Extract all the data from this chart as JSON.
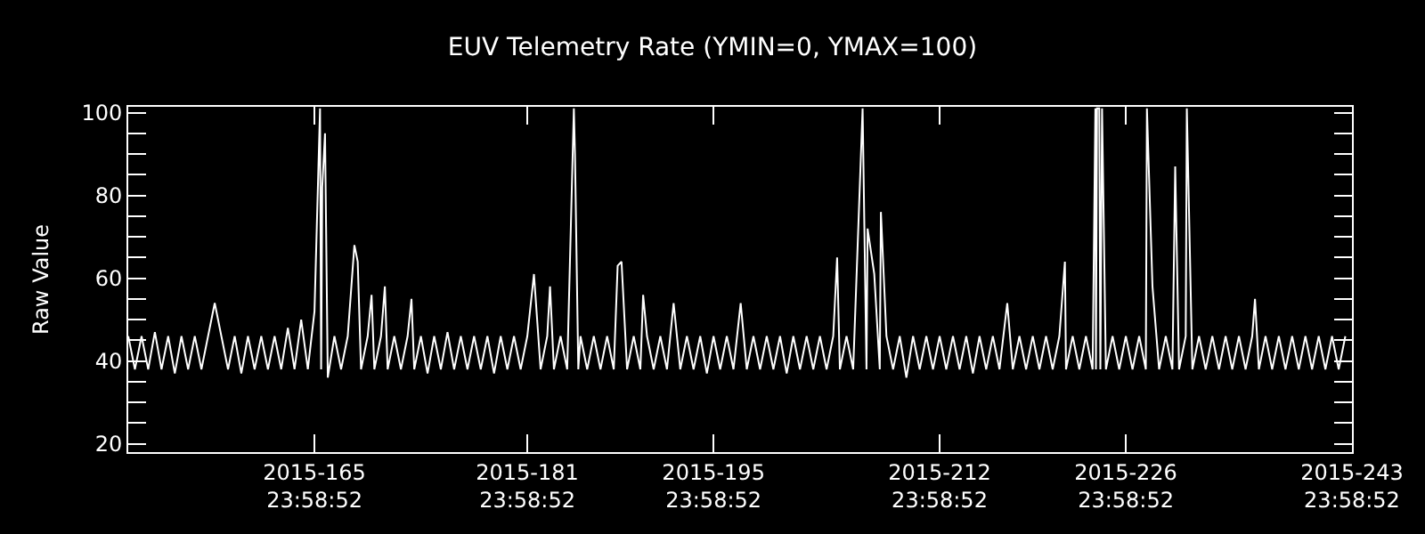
{
  "chart_data": {
    "type": "line",
    "title": "EUV Telemetry Rate (YMIN=0, YMAX=100)",
    "ylabel": "Raw Value",
    "xlim": [
      "2015-05-31T23:58",
      "2015-08-31T23:58"
    ],
    "xticks": [
      {
        "value": "2015-06-14T23:58",
        "label": "2015-165\n23:58:52"
      },
      {
        "value": "2015-06-30T23:58",
        "label": "2015-181\n23:58:52"
      },
      {
        "value": "2015-07-14T23:58",
        "label": "2015-195\n23:58:52"
      },
      {
        "value": "2015-07-31T23:58",
        "label": "2015-212\n23:58:52"
      },
      {
        "value": "2015-08-14T23:58",
        "label": "2015-226\n23:58:52"
      },
      {
        "value": "2015-08-31T23:58",
        "label": "2015-243\n23:58:52"
      }
    ],
    "ylim": [
      18,
      101.4
    ],
    "yticks": [
      20,
      {
        "value": 25,
        "label": null
      },
      {
        "value": 30,
        "label": null
      },
      {
        "value": 35,
        "label": null
      },
      40,
      {
        "value": 45,
        "label": null
      },
      {
        "value": 50,
        "label": null
      },
      {
        "value": 55,
        "label": null
      },
      60,
      {
        "value": 65,
        "label": null
      },
      {
        "value": 70,
        "label": null
      },
      {
        "value": 75,
        "label": null
      },
      80,
      {
        "value": 85,
        "label": null
      },
      {
        "value": 90,
        "label": null
      },
      {
        "value": 95,
        "label": null
      },
      100
    ],
    "grid": false,
    "marker": "none",
    "line_style": "solid",
    "series": [
      {
        "color": "#ffffff",
        "x": [
          "2015-06-01T00:00",
          "2015-06-01T12:00",
          "2015-06-02T00:00",
          "2015-06-02T12:00",
          "2015-06-03T00:00",
          "2015-06-03T12:00",
          "2015-06-04T00:00",
          "2015-06-04T12:00",
          "2015-06-05T00:00",
          "2015-06-05T12:00",
          "2015-06-06T00:00",
          "2015-06-06T12:00",
          "2015-06-07T00:00",
          "2015-06-07T12:00",
          "2015-06-08T00:00",
          "2015-06-08T12:00",
          "2015-06-09T00:00",
          "2015-06-09T12:00",
          "2015-06-10T00:00",
          "2015-06-10T12:00",
          "2015-06-11T00:00",
          "2015-06-11T12:00",
          "2015-06-12T00:00",
          "2015-06-12T12:00",
          "2015-06-13T00:00",
          "2015-06-13T12:00",
          "2015-06-14T00:00",
          "2015-06-14T12:00",
          "2015-06-15T00:00",
          "2015-06-15T10:00",
          "2015-06-15T12:00",
          "2015-06-15T14:00",
          "2015-06-15T19:00",
          "2015-06-16T00:00",
          "2015-06-16T12:00",
          "2015-06-17T00:00",
          "2015-06-17T12:00",
          "2015-06-18T00:00",
          "2015-06-18T06:00",
          "2015-06-18T12:00",
          "2015-06-19T00:00",
          "2015-06-19T07:00",
          "2015-06-19T12:00",
          "2015-06-20T00:00",
          "2015-06-20T07:00",
          "2015-06-20T12:00",
          "2015-06-21T00:00",
          "2015-06-21T12:00",
          "2015-06-22T00:00",
          "2015-06-22T07:00",
          "2015-06-22T12:00",
          "2015-06-23T00:00",
          "2015-06-23T12:00",
          "2015-06-24T00:00",
          "2015-06-24T12:00",
          "2015-06-25T00:00",
          "2015-06-25T12:00",
          "2015-06-26T00:00",
          "2015-06-26T12:00",
          "2015-06-27T00:00",
          "2015-06-27T12:00",
          "2015-06-28T00:00",
          "2015-06-28T12:00",
          "2015-06-29T00:00",
          "2015-06-29T12:00",
          "2015-06-30T00:00",
          "2015-06-30T12:00",
          "2015-07-01T00:00",
          "2015-07-01T12:00",
          "2015-07-02T00:00",
          "2015-07-02T12:00",
          "2015-07-02T17:00",
          "2015-07-03T00:00",
          "2015-07-03T12:00",
          "2015-07-04T00:00",
          "2015-07-04T12:00",
          "2015-07-04T14:00",
          "2015-07-04T20:00",
          "2015-07-05T00:00",
          "2015-07-05T12:00",
          "2015-07-06T00:00",
          "2015-07-06T12:00",
          "2015-07-07T00:00",
          "2015-07-07T12:00",
          "2015-07-07T19:00",
          "2015-07-08T02:00",
          "2015-07-08T12:00",
          "2015-07-09T00:00",
          "2015-07-09T12:00",
          "2015-07-09T17:00",
          "2015-07-10T00:00",
          "2015-07-10T12:00",
          "2015-07-11T00:00",
          "2015-07-11T12:00",
          "2015-07-12T00:00",
          "2015-07-12T12:00",
          "2015-07-13T00:00",
          "2015-07-13T12:00",
          "2015-07-14T00:00",
          "2015-07-14T12:00",
          "2015-07-15T00:00",
          "2015-07-15T12:00",
          "2015-07-16T00:00",
          "2015-07-16T12:00",
          "2015-07-17T01:00",
          "2015-07-17T12:00",
          "2015-07-18T00:00",
          "2015-07-18T12:00",
          "2015-07-19T00:00",
          "2015-07-19T12:00",
          "2015-07-20T00:00",
          "2015-07-20T12:00",
          "2015-07-21T00:00",
          "2015-07-21T12:00",
          "2015-07-22T00:00",
          "2015-07-22T12:00",
          "2015-07-23T00:00",
          "2015-07-23T12:00",
          "2015-07-24T00:00",
          "2015-07-24T07:00",
          "2015-07-24T12:00",
          "2015-07-25T00:00",
          "2015-07-25T12:00",
          "2015-07-26T05:00",
          "2015-07-26T12:00",
          "2015-07-26T14:00",
          "2015-07-27T02:00",
          "2015-07-27T12:00",
          "2015-07-27T14:00",
          "2015-07-28T00:00",
          "2015-07-28T12:00",
          "2015-07-29T00:00",
          "2015-07-29T12:00",
          "2015-07-30T00:00",
          "2015-07-30T12:00",
          "2015-07-31T00:00",
          "2015-07-31T12:00",
          "2015-08-01T00:00",
          "2015-08-01T12:00",
          "2015-08-02T00:00",
          "2015-08-02T12:00",
          "2015-08-03T00:00",
          "2015-08-03T12:00",
          "2015-08-04T00:00",
          "2015-08-04T12:00",
          "2015-08-05T00:00",
          "2015-08-05T12:00",
          "2015-08-06T02:00",
          "2015-08-06T12:00",
          "2015-08-07T00:00",
          "2015-08-07T12:00",
          "2015-08-08T00:00",
          "2015-08-08T12:00",
          "2015-08-09T00:00",
          "2015-08-09T12:00",
          "2015-08-10T00:00",
          "2015-08-10T10:00",
          "2015-08-10T12:00",
          "2015-08-11T00:00",
          "2015-08-11T12:00",
          "2015-08-12T00:00",
          "2015-08-12T12:00",
          "2015-08-12T17:00",
          "2015-08-12T18:00",
          "2015-08-12T20:00",
          "2015-08-13T00:00",
          "2015-08-13T02:00",
          "2015-08-13T05:00",
          "2015-08-13T12:00",
          "2015-08-14T00:00",
          "2015-08-14T12:00",
          "2015-08-15T00:00",
          "2015-08-15T12:00",
          "2015-08-16T00:00",
          "2015-08-16T12:00",
          "2015-08-16T14:00",
          "2015-08-17T00:00",
          "2015-08-17T12:00",
          "2015-08-18T00:00",
          "2015-08-18T12:00",
          "2015-08-18T17:00",
          "2015-08-19T00:00",
          "2015-08-19T12:00",
          "2015-08-19T14:00",
          "2015-08-20T00:00",
          "2015-08-20T12:00",
          "2015-08-21T00:00",
          "2015-08-21T12:00",
          "2015-08-22T00:00",
          "2015-08-22T12:00",
          "2015-08-23T00:00",
          "2015-08-23T12:00",
          "2015-08-24T00:00",
          "2015-08-24T12:00",
          "2015-08-24T17:00",
          "2015-08-25T00:00",
          "2015-08-25T12:00",
          "2015-08-26T00:00",
          "2015-08-26T12:00",
          "2015-08-27T00:00",
          "2015-08-27T12:00",
          "2015-08-28T00:00",
          "2015-08-28T12:00",
          "2015-08-29T00:00",
          "2015-08-29T12:00",
          "2015-08-30T00:00",
          "2015-08-30T12:00",
          "2015-08-31T00:00",
          "2015-08-31T12:00"
        ],
        "values": [
          46,
          38,
          46,
          38,
          47,
          38,
          46,
          37,
          46,
          38,
          46,
          38,
          46,
          54,
          46,
          38,
          46,
          37,
          46,
          38,
          46,
          38,
          46,
          38,
          48,
          38,
          50,
          38,
          52,
          101,
          38,
          82,
          95,
          36,
          46,
          38,
          46,
          68,
          64,
          38,
          46,
          56,
          38,
          46,
          58,
          38,
          46,
          38,
          46,
          55,
          38,
          46,
          37,
          46,
          38,
          47,
          38,
          46,
          38,
          46,
          38,
          46,
          37,
          46,
          38,
          46,
          38,
          46,
          61,
          38,
          46,
          58,
          38,
          46,
          38,
          101,
          90,
          38,
          46,
          38,
          46,
          38,
          46,
          38,
          63,
          64,
          38,
          46,
          38,
          56,
          46,
          38,
          46,
          38,
          54,
          38,
          46,
          38,
          46,
          37,
          46,
          38,
          46,
          38,
          54,
          38,
          46,
          38,
          46,
          38,
          46,
          37,
          46,
          38,
          46,
          38,
          46,
          38,
          46,
          65,
          38,
          46,
          38,
          101,
          38,
          72,
          61,
          38,
          76,
          46,
          38,
          46,
          36,
          46,
          38,
          46,
          38,
          46,
          38,
          46,
          38,
          46,
          37,
          46,
          38,
          46,
          38,
          54,
          38,
          46,
          38,
          46,
          38,
          46,
          38,
          46,
          64,
          38,
          46,
          38,
          46,
          38,
          101,
          38,
          101,
          101,
          38,
          101,
          38,
          46,
          38,
          46,
          38,
          46,
          38,
          101,
          58,
          38,
          46,
          38,
          87,
          38,
          46,
          101,
          38,
          46,
          38,
          46,
          38,
          46,
          38,
          46,
          38,
          46,
          55,
          38,
          46,
          38,
          46,
          38,
          46,
          38,
          46,
          38,
          46,
          38,
          46,
          38,
          46
        ]
      }
    ]
  }
}
